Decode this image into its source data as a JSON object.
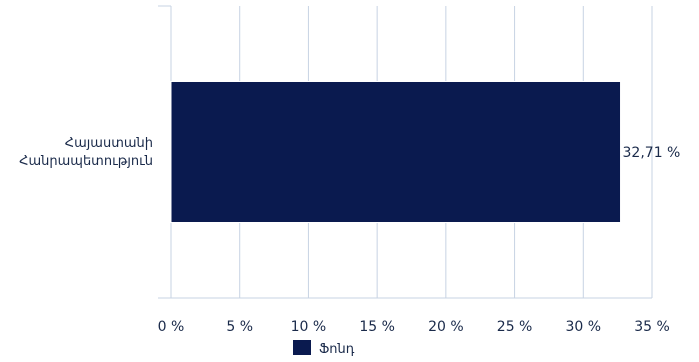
{
  "chart_data": {
    "type": "bar",
    "orientation": "horizontal",
    "categories": [
      "Հայաստանի Հանրապետություն"
    ],
    "category_lines": [
      [
        "Հայաստանի",
        "Հանրապետություն"
      ]
    ],
    "series": [
      {
        "name": "Ֆոնդ",
        "values": [
          32.71
        ],
        "value_labels": [
          "32,71 %"
        ],
        "color": "#0a1a4f"
      }
    ],
    "x_ticks": [
      0,
      5,
      10,
      15,
      20,
      25,
      30,
      35
    ],
    "x_tick_labels": [
      "0 %",
      "5 %",
      "10 %",
      "15 %",
      "20 %",
      "25 %",
      "30 %",
      "35 %"
    ],
    "xlim": [
      0,
      35
    ],
    "grid": "vertical",
    "legend_position": "bottom",
    "colors": {
      "bar": "#0a1a4f",
      "grid": "#c7d3e3",
      "text": "#1a2a4a"
    }
  }
}
